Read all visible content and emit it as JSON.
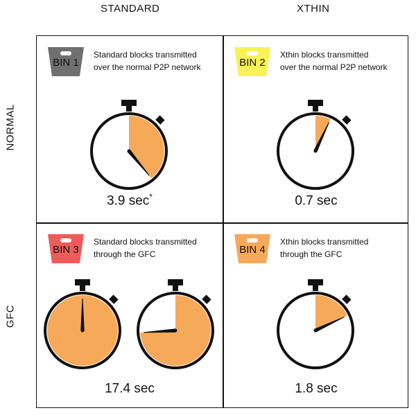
{
  "columns": {
    "standard": "STANDARD",
    "xthin": "XTHIN"
  },
  "rows": {
    "normal": "NORMAL",
    "gfc": "GFC"
  },
  "colors": {
    "gray": "#707070",
    "yellow": "#f8f254",
    "red": "#ef5b5b",
    "orange": "#f7a95a",
    "ink": "#111111"
  },
  "bins": [
    {
      "label": "BIN 1",
      "desc_line1": "Standard blocks transmitted",
      "desc_line2": "over the normal P2P network",
      "time": "3.9 sec",
      "footnote": "*",
      "elapsed_seconds": 3.9
    },
    {
      "label": "BIN 2",
      "desc_line1": "Xthin blocks transmitted",
      "desc_line2": "over the normal P2P network",
      "time": "0.7 sec",
      "footnote": "",
      "elapsed_seconds": 0.7
    },
    {
      "label": "BIN 3",
      "desc_line1": "Standard blocks transmitted",
      "desc_line2": "through the GFC",
      "time": "17.4 sec",
      "footnote": "",
      "elapsed_seconds": 17.4
    },
    {
      "label": "BIN 4",
      "desc_line1": "Xthin blocks transmitted",
      "desc_line2": "through the GFC",
      "time": "1.8 sec",
      "footnote": "",
      "elapsed_seconds": 1.8
    }
  ]
}
